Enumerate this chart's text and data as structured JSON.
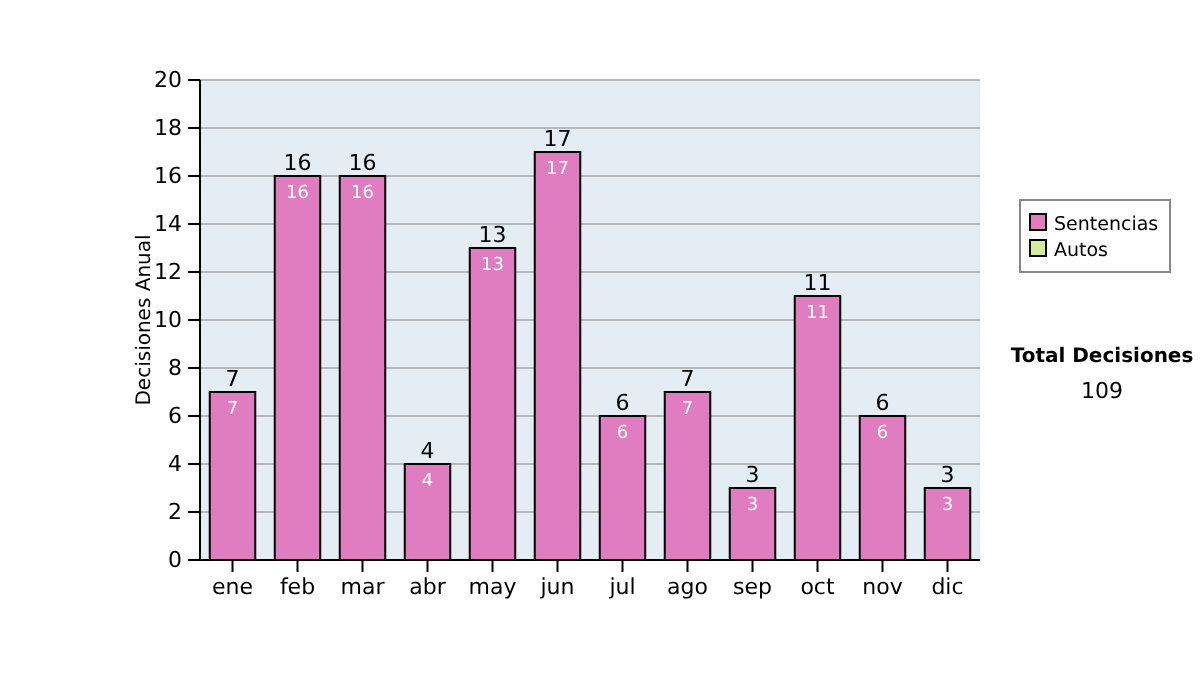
{
  "chart_data": {
    "type": "bar",
    "ylabel": "Decisiones Anual",
    "categories": [
      "ene",
      "feb",
      "mar",
      "abr",
      "may",
      "jun",
      "jul",
      "ago",
      "sep",
      "oct",
      "nov",
      "dic"
    ],
    "stacked": true,
    "series": [
      {
        "name": "Sentencias",
        "color": "#e07dc0",
        "values": [
          7,
          16,
          16,
          4,
          13,
          17,
          6,
          7,
          3,
          11,
          6,
          3
        ],
        "value_labels": [
          "7",
          "16",
          "16",
          "4",
          "13",
          "17",
          "6",
          "7",
          "3",
          "11",
          "6",
          "3"
        ]
      },
      {
        "name": "Autos",
        "color": "#d6ec9c",
        "values": [
          0,
          0,
          0,
          0,
          0,
          0,
          0,
          0,
          0,
          0,
          0,
          0
        ]
      }
    ],
    "totals": [
      "7",
      "16",
      "16",
      "4",
      "13",
      "17",
      "6",
      "7",
      "3",
      "11",
      "6",
      "3"
    ],
    "ylim": [
      0,
      20
    ],
    "yticks": [
      0,
      2,
      4,
      6,
      8,
      10,
      12,
      14,
      16,
      18,
      20
    ],
    "grid": "y",
    "legend": "right",
    "annotations": [
      "Total Decisiones",
      "109"
    ]
  }
}
